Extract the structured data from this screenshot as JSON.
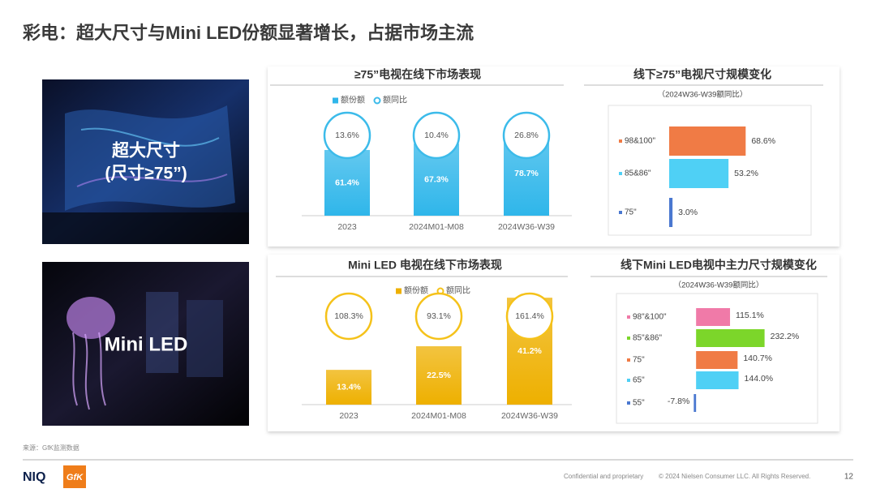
{
  "title": "彩电：超大尺寸与Mini LED份额显著增长，占据市场主流",
  "images": [
    {
      "caption": [
        "超大尺寸",
        "(尺寸≥75”)"
      ]
    },
    {
      "caption": [
        "Mini LED"
      ]
    }
  ],
  "chart_data": [
    {
      "type": "bar",
      "title": "≥75”电视在线下市场表现",
      "categories": [
        "2023",
        "2024M01-M08",
        "2024W36-W39"
      ],
      "ylim": [
        0,
        100
      ],
      "series": [
        {
          "name": "额份额",
          "color": "#2fb6ea",
          "mark": "bar",
          "values": [
            61.4,
            67.3,
            78.7
          ],
          "value_labels": [
            "61.4%",
            "67.3%",
            "78.7%"
          ]
        },
        {
          "name": "额同比",
          "color": "#3cbbea",
          "mark": "circle",
          "values": [
            13.6,
            10.4,
            26.8
          ],
          "value_labels": [
            "13.6%",
            "10.4%",
            "26.8%"
          ]
        }
      ]
    },
    {
      "type": "hbar",
      "title": "线下≥75”电视尺寸规模变化",
      "subtitle": "（2024W36-W39额同比）",
      "categories": [
        "98&100\"",
        "85&86\"",
        "75\""
      ],
      "values": [
        68.6,
        53.2,
        3.0
      ],
      "value_labels": [
        "68.6%",
        "53.2%",
        "3.0%"
      ],
      "colors": [
        "#f07b45",
        "#4fd0f5",
        "#4a78d0"
      ],
      "xlim": [
        0,
        120
      ]
    },
    {
      "type": "bar",
      "title": "Mini LED 电视在线下市场表现",
      "categories": [
        "2023",
        "2024M01-M08",
        "2024W36-W39"
      ],
      "ylim": [
        0,
        50
      ],
      "series": [
        {
          "name": "额份额",
          "color": "#eeb000",
          "mark": "bar",
          "values": [
            13.4,
            22.5,
            41.2
          ],
          "value_labels": [
            "13.4%",
            "22.5%",
            "41.2%"
          ]
        },
        {
          "name": "额同比",
          "color": "#f5c21a",
          "mark": "circle",
          "values": [
            108.3,
            93.1,
            161.4
          ],
          "value_labels": [
            "108.3%",
            "93.1%",
            "161.4%"
          ]
        }
      ]
    },
    {
      "type": "hbar",
      "title": "线下Mini LED电视中主力尺寸规模变化",
      "subtitle": "（2024W36-W39额同比）",
      "categories": [
        "98\"&100\"",
        "85\"&86\"",
        "75\"",
        "65\"",
        "55\""
      ],
      "values": [
        115.1,
        232.2,
        140.7,
        144.0,
        -7.8
      ],
      "value_labels": [
        "115.1%",
        "232.2%",
        "140.7%",
        "144.0%",
        "-7.8%"
      ],
      "colors": [
        "#f07aa8",
        "#7cd62a",
        "#f07b45",
        "#4fd0f5",
        "#4a78d0"
      ],
      "xlim": [
        -50,
        390
      ]
    }
  ],
  "footer": {
    "source": "来源：GfK监测数据",
    "logos": [
      "NIQ",
      "GfK"
    ],
    "confidential": "Confidential and proprietary",
    "copyright": "© 2024 Nielsen Consumer LLC. All Rights Reserved.",
    "page": 12
  }
}
